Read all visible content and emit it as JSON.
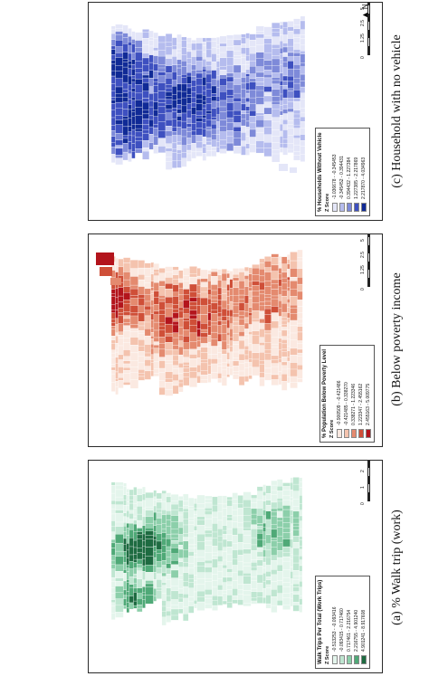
{
  "panels": [
    {
      "id": "a",
      "caption": "(a) % Walk trip (work)",
      "legend_title": "Walk Trips Per Total (Work Trips)",
      "legend_subtitle": "Z Score",
      "colors": [
        "#e4f5ec",
        "#bfe6d1",
        "#8ccfaa",
        "#4fa977",
        "#1e6b41"
      ],
      "classes": [
        "-0.513253 - -0.093416",
        "-0.093415 - 0.717460",
        "0.717461 - 2.216754",
        "2.216755 - 4.901240",
        "4.901241 - 8.917608"
      ],
      "scale_labels": [
        "0",
        "1",
        "2",
        "4",
        "6",
        "8"
      ],
      "scale_unit": "Miles"
    },
    {
      "id": "b",
      "caption": "(b) Below poverty income",
      "legend_title": "% Population Below Poverty Level",
      "legend_subtitle": "Z Score",
      "colors": [
        "#fbe9e1",
        "#f4c3ae",
        "#e48a6f",
        "#cf4f38",
        "#b3141c"
      ],
      "classes": [
        "-0.900509 - -0.421486",
        "-0.421485 - 0.338270",
        "0.338271 - 1.223346",
        "1.223347 - 2.455162",
        "2.455163 - 5.009775"
      ],
      "scale_labels": [
        "0",
        "1.25",
        "2.5",
        "5",
        "7.5",
        "10"
      ],
      "scale_unit": "Miles"
    },
    {
      "id": "c",
      "caption": "(c) Household with no vehicle",
      "legend_title": "% Households Without Vehicle",
      "legend_subtitle": "Z Score",
      "colors": [
        "#e4e6f8",
        "#b5bcee",
        "#7e8ad9",
        "#3e50c0",
        "#102a96"
      ],
      "classes": [
        "-1.036678 - -0.345453",
        "-0.345452 - 0.394431",
        "0.394432 - 1.227384",
        "1.227385 - 2.217869",
        "2.217870 - 4.034963"
      ],
      "scale_labels": [
        "0",
        "1.25",
        "2.5",
        "5",
        "7.5",
        "10"
      ],
      "scale_unit": "Miles"
    }
  ],
  "north_arrow_label": "N"
}
